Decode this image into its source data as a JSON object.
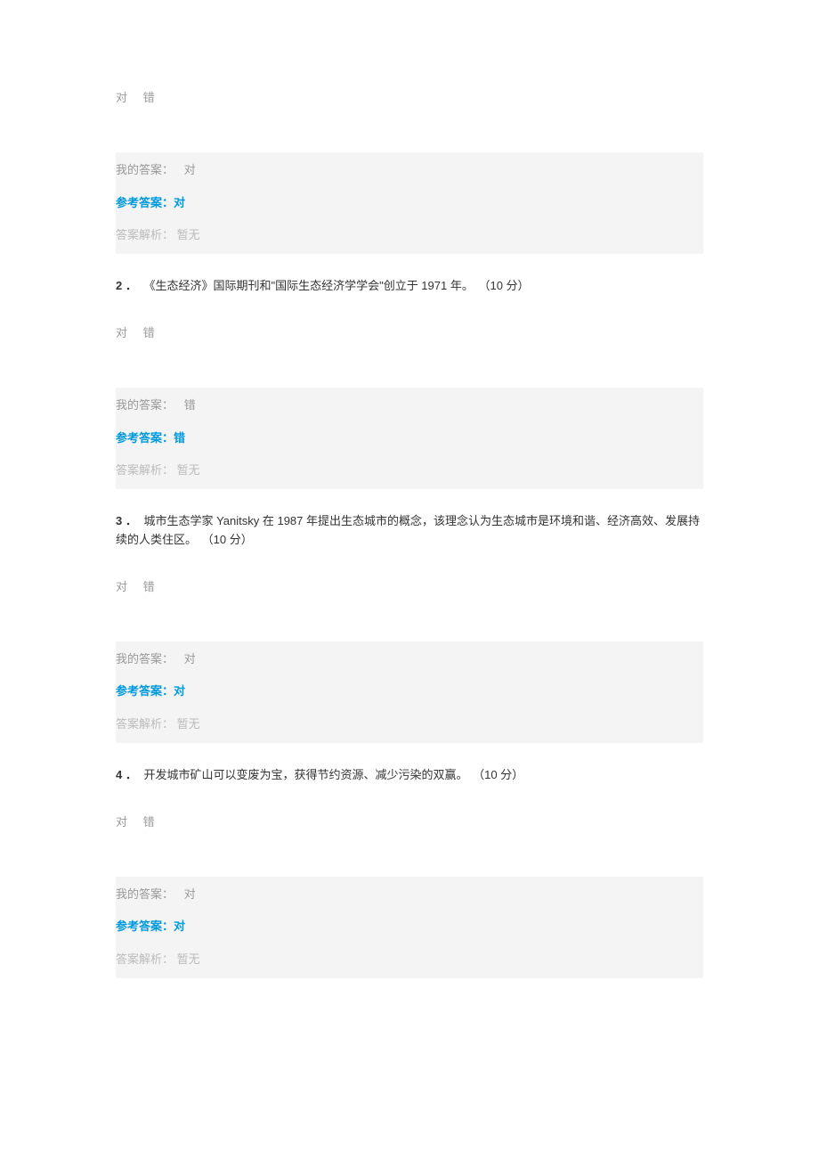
{
  "option_true": "对",
  "option_false": "错",
  "my_answer_label": "我的答案：",
  "ref_answer_label": "参考答案：",
  "analysis_label": "答案解析：",
  "analysis_value": "暂无",
  "questions": [
    {
      "num": "",
      "text": "",
      "points": "",
      "my_answer": "对",
      "ref_answer": "对"
    },
    {
      "num": "2 ．",
      "text": "《生态经济》国际期刊和\"国际生态经济学学会\"创立于 1971 年。",
      "points": "（10 分）",
      "my_answer": "错",
      "ref_answer": "错"
    },
    {
      "num": "3 ．",
      "text": "城市生态学家 Yanitsky 在 1987 年提出生态城市的概念，该理念认为生态城市是环境和谐、经济高效、发展持续的人类住区。",
      "points": "（10 分）",
      "my_answer": "对",
      "ref_answer": "对"
    },
    {
      "num": "4 ．",
      "text": "开发城市矿山可以变废为宝，获得节约资源、减少污染的双赢。",
      "points": "（10 分）",
      "my_answer": "对",
      "ref_answer": "对"
    }
  ]
}
